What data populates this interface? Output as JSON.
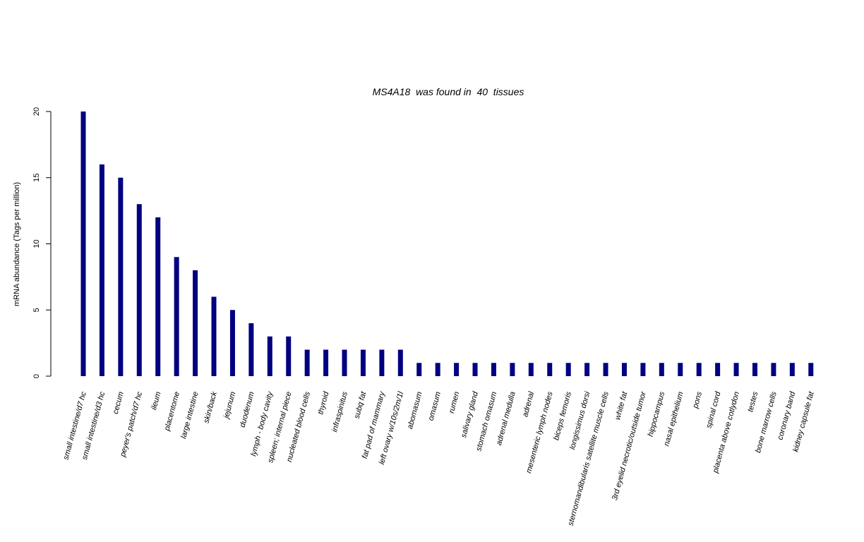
{
  "chart_data": {
    "type": "bar",
    "title": "MS4A18  was found in  40  tissues",
    "ylabel": "mRNA abundance (Tags per million)",
    "xlabel": "",
    "ylim": [
      0,
      20
    ],
    "yticks": [
      "0",
      "5",
      "10",
      "15",
      "20"
    ],
    "ytick_values": [
      0,
      5,
      10,
      15,
      20
    ],
    "grid": false,
    "bar_color": "#000080",
    "categories": [
      "small intestine/d7 hc",
      "small intestine/d3 hc",
      "cecum",
      "peyer's patch/d7 hc",
      "ileum",
      "placentome",
      "large intestine",
      "skin/back",
      "jejunum",
      "duodenum",
      "lymph - body cavity",
      "spleen; internal piece",
      "nucleated blood cells",
      "thyroid",
      "infraspinitus",
      "subq fat",
      "fat pad of mammary",
      "left ovary w/10s/2m/1l",
      "abomasum",
      "omasum",
      "rumen",
      "salivary gland",
      "stomach omasum",
      "adrenal medulla",
      "adrenal",
      "mesenteric lymph nodes",
      "biceps femoris",
      "longissimus dorsi",
      "sternomandibularis satellite muscle cells",
      "white fat",
      "3rd eyelid necrotic/outside tumor",
      "hippocampus",
      "nasal epithelium",
      "pons",
      "spinal cord",
      "placenta above cotlydon",
      "testes",
      "bone marrow cells",
      "coronary band",
      "kidney capsule fat"
    ],
    "values": [
      20,
      16,
      15,
      13,
      12,
      9,
      8,
      6,
      5,
      4,
      3,
      3,
      2,
      2,
      2,
      2,
      2,
      2,
      1,
      1,
      1,
      1,
      1,
      1,
      1,
      1,
      1,
      1,
      1,
      1,
      1,
      1,
      1,
      1,
      1,
      1,
      1,
      1,
      1,
      1
    ]
  }
}
